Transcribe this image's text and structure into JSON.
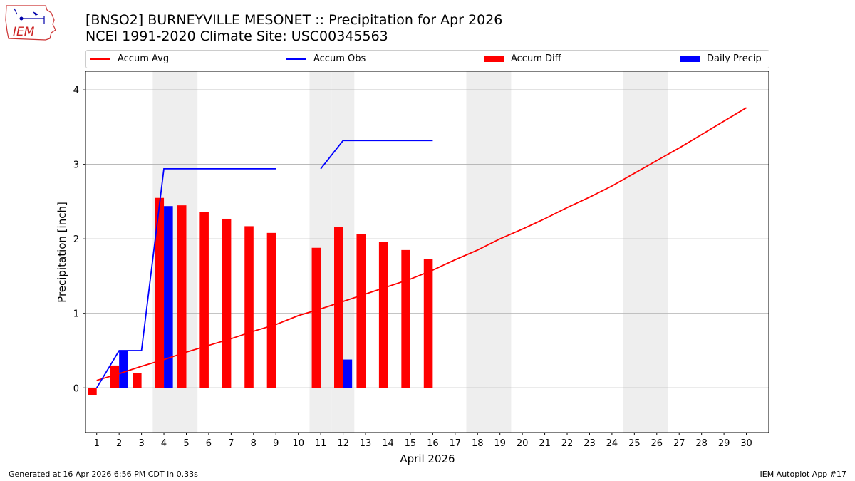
{
  "header": {
    "title_line1": "[BNSO2] BURNEYVILLE MESONET :: Precipitation for Apr 2026",
    "title_line2": "NCEI 1991-2020 Climate Site: USC00345563"
  },
  "logo": {
    "text": "IEM",
    "icon": "iowa-state-logo-icon"
  },
  "footer": {
    "left": "Generated at 16 Apr 2026 6:56 PM CDT in 0.33s",
    "right": "IEM Autoplot App #17"
  },
  "legend": {
    "accum_avg": "Accum Avg",
    "accum_obs": "Accum Obs",
    "accum_diff": "Accum Diff",
    "daily_precip": "Daily Precip"
  },
  "colors": {
    "avg": "#ff0000",
    "obs": "#0000ff",
    "diff": "#ff0000",
    "daily": "#0000ff",
    "weekend": "#eeeeee",
    "grid": "#b0b0b0"
  },
  "chart_data": {
    "type": "bar",
    "title": "[BNSO2] BURNEYVILLE MESONET :: Precipitation for Apr 2026",
    "xlabel": "April 2026",
    "ylabel": "Precipitation [inch]",
    "xlim": [
      0.5,
      31
    ],
    "ylim": [
      -0.6,
      4.25
    ],
    "yticks": [
      0,
      1,
      2,
      3,
      4
    ],
    "days": [
      1,
      2,
      3,
      4,
      5,
      6,
      7,
      8,
      9,
      10,
      11,
      12,
      13,
      14,
      15,
      16,
      17,
      18,
      19,
      20,
      21,
      22,
      23,
      24,
      25,
      26,
      27,
      28,
      29,
      30
    ],
    "weekend_days": [
      4,
      5,
      11,
      12,
      18,
      19,
      25,
      26
    ],
    "series": [
      {
        "name": "Accum Avg",
        "type": "line",
        "values": [
          0.1,
          0.19,
          0.29,
          0.38,
          0.48,
          0.57,
          0.66,
          0.76,
          0.85,
          0.97,
          1.06,
          1.16,
          1.26,
          1.36,
          1.46,
          1.58,
          1.72,
          1.85,
          2.0,
          2.13,
          2.27,
          2.42,
          2.56,
          2.71,
          2.88,
          3.05,
          3.22,
          3.4,
          3.58,
          3.76
        ]
      },
      {
        "name": "Accum Obs",
        "type": "line",
        "values": [
          0.0,
          0.5,
          0.5,
          2.94,
          2.94,
          2.94,
          2.94,
          2.94,
          2.94,
          null,
          2.94,
          3.32,
          3.32,
          3.32,
          3.32,
          3.32,
          null,
          null,
          null,
          null,
          null,
          null,
          null,
          null,
          null,
          null,
          null,
          null,
          null,
          null
        ]
      },
      {
        "name": "Accum Diff",
        "type": "bar",
        "values": [
          -0.1,
          0.3,
          0.2,
          2.55,
          2.45,
          2.36,
          2.27,
          2.17,
          2.08,
          null,
          1.88,
          2.16,
          2.06,
          1.96,
          1.85,
          1.73,
          null,
          null,
          null,
          null,
          null,
          null,
          null,
          null,
          null,
          null,
          null,
          null,
          null,
          null
        ]
      },
      {
        "name": "Daily Precip",
        "type": "bar",
        "values": [
          0.0,
          0.5,
          0.0,
          2.44,
          0.0,
          0.0,
          0.0,
          0.0,
          0.0,
          null,
          0.0,
          0.38,
          0.0,
          0.0,
          0.0,
          0.0,
          null,
          null,
          null,
          null,
          null,
          null,
          null,
          null,
          null,
          null,
          null,
          null,
          null,
          null
        ]
      }
    ]
  }
}
